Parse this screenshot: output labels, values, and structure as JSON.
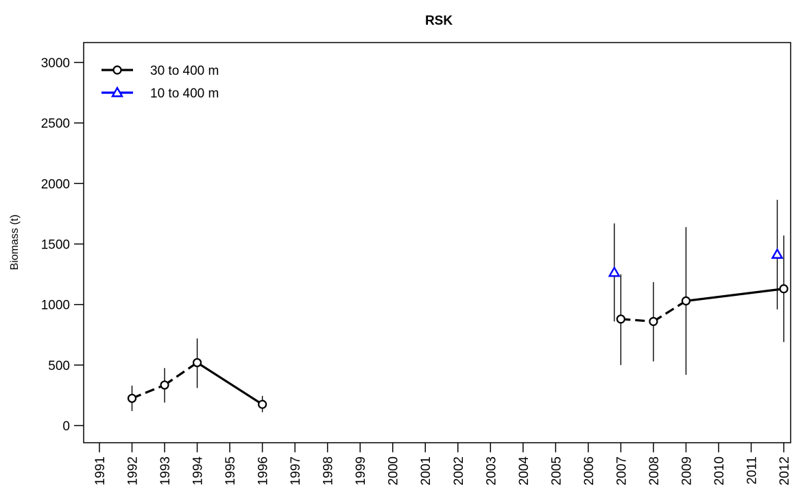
{
  "chart_data": {
    "type": "line",
    "title": "RSK",
    "xlabel": "",
    "ylabel": "Biomass (t)",
    "xlim": [
      1991,
      2012
    ],
    "ylim": [
      0,
      3000
    ],
    "x_ticks": [
      "1991",
      "1992",
      "1993",
      "1994",
      "1995",
      "1996",
      "1997",
      "1998",
      "1999",
      "2000",
      "2001",
      "2002",
      "2003",
      "2004",
      "2005",
      "2006",
      "2007",
      "2008",
      "2009",
      "2010",
      "2011",
      "2012"
    ],
    "y_ticks": [
      "0",
      "500",
      "1000",
      "1500",
      "2000",
      "2500",
      "3000"
    ],
    "grid": false,
    "legend_position": "top-left",
    "series": [
      {
        "name": "30 to 400 m",
        "color": "#000000",
        "marker": "circle",
        "points": [
          {
            "x": 1992,
            "y": 225,
            "lo": 120,
            "hi": 330
          },
          {
            "x": 1993,
            "y": 335,
            "lo": 190,
            "hi": 475
          },
          {
            "x": 1994,
            "y": 520,
            "lo": 310,
            "hi": 720
          },
          {
            "x": 1996,
            "y": 175,
            "lo": 110,
            "hi": 245
          },
          {
            "x": 2007,
            "y": 880,
            "lo": 500,
            "hi": 1250
          },
          {
            "x": 2008,
            "y": 860,
            "lo": 530,
            "hi": 1185
          },
          {
            "x": 2009,
            "y": 1030,
            "lo": 420,
            "hi": 1640
          },
          {
            "x": 2012,
            "y": 1130,
            "lo": 690,
            "hi": 1570
          }
        ],
        "segments": [
          {
            "from": 1992,
            "to": 1993,
            "style": "dashed"
          },
          {
            "from": 1993,
            "to": 1994,
            "style": "dashed"
          },
          {
            "from": 1994,
            "to": 1996,
            "style": "solid"
          },
          {
            "from": 2007,
            "to": 2008,
            "style": "dashed"
          },
          {
            "from": 2008,
            "to": 2009,
            "style": "dashed"
          },
          {
            "from": 2009,
            "to": 2012,
            "style": "solid"
          }
        ]
      },
      {
        "name": "10 to 400 m",
        "color": "#0000ff",
        "marker": "triangle",
        "points": [
          {
            "x": 2006.8,
            "y": 1265,
            "lo": 860,
            "hi": 1670
          },
          {
            "x": 2011.8,
            "y": 1415,
            "lo": 960,
            "hi": 1865
          }
        ],
        "segments": []
      }
    ]
  }
}
